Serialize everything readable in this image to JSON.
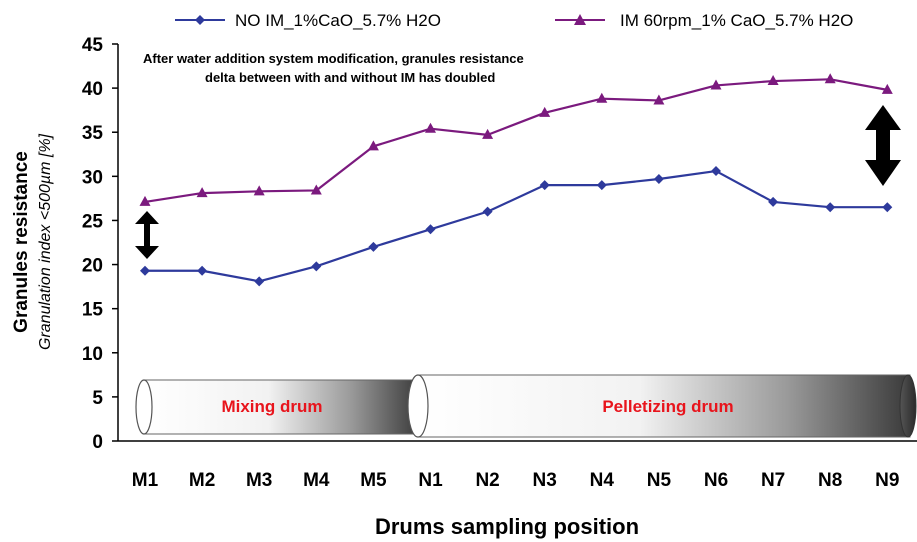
{
  "chart_data": {
    "type": "line",
    "categories": [
      "M1",
      "M2",
      "M3",
      "M4",
      "M5",
      "N1",
      "N2",
      "N3",
      "N4",
      "N5",
      "N6",
      "N7",
      "N8",
      "N9"
    ],
    "series": [
      {
        "name": "NO IM_1%CaO_5.7% H2O",
        "color": "#2e3a9c",
        "marker": "diamond",
        "values": [
          19.3,
          19.3,
          18.1,
          19.8,
          22.0,
          24.0,
          26.0,
          29.0,
          29.0,
          29.7,
          30.6,
          27.1,
          26.5,
          26.5
        ]
      },
      {
        "name": "IM 60rpm_1% CaO_5.7% H2O",
        "color": "#7b1a7e",
        "marker": "triangle",
        "values": [
          27.1,
          28.1,
          28.3,
          28.4,
          33.4,
          35.4,
          34.7,
          37.2,
          38.8,
          38.6,
          40.3,
          40.8,
          41.0,
          39.8
        ]
      }
    ],
    "ylim": [
      0,
      45
    ],
    "yticks": [
      "0",
      "5",
      "10",
      "15",
      "20",
      "25",
      "30",
      "35",
      "40",
      "45"
    ],
    "xlabel": "Drums sampling position",
    "ylabel": "Granules resistance",
    "ylabel_sub": "Granulation index <500µm [%]",
    "annotation": {
      "line1": "After water addition system modification, granules resistance",
      "line2": "delta between with and without IM has doubled"
    },
    "drums": [
      {
        "label": "Mixing drum",
        "start": "M1",
        "end": "M5"
      },
      {
        "label": "Pelletizing drum",
        "start": "N1",
        "end": "N9"
      }
    ],
    "legend_position": "top",
    "grid": false
  }
}
